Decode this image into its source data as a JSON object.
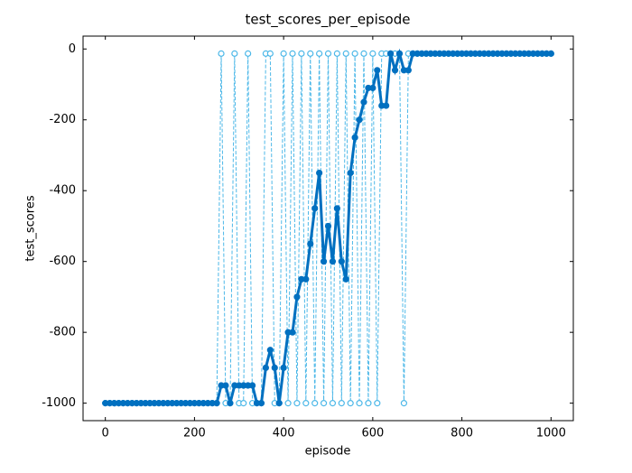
{
  "chart_data": {
    "type": "line",
    "title": "test_scores_per_episode",
    "x_label": "episode",
    "y_label": "test_scores",
    "x": [
      0,
      10,
      20,
      30,
      40,
      50,
      60,
      70,
      80,
      90,
      100,
      110,
      120,
      130,
      140,
      150,
      160,
      170,
      180,
      190,
      200,
      210,
      220,
      230,
      240,
      250,
      260,
      270,
      280,
      290,
      300,
      310,
      320,
      330,
      340,
      350,
      360,
      370,
      380,
      390,
      400,
      410,
      420,
      430,
      440,
      450,
      460,
      470,
      480,
      490,
      500,
      510,
      520,
      530,
      540,
      550,
      560,
      570,
      580,
      590,
      600,
      610,
      620,
      630,
      640,
      650,
      660,
      670,
      680,
      690,
      700,
      710,
      720,
      730,
      740,
      750,
      760,
      770,
      780,
      790,
      800,
      810,
      820,
      830,
      840,
      850,
      860,
      870,
      880,
      890,
      900,
      910,
      920,
      930,
      940,
      950,
      960,
      970,
      980,
      990,
      1000
    ],
    "series": [
      {
        "color": "#4db8e8",
        "linestyle": "dashed",
        "linewidth": 1,
        "marker_filled": false,
        "values": [
          -1000,
          -1000,
          -1000,
          -1000,
          -1000,
          -1000,
          -1000,
          -1000,
          -1000,
          -1000,
          -1000,
          -1000,
          -1000,
          -1000,
          -1000,
          -1000,
          -1000,
          -1000,
          -1000,
          -1000,
          -1000,
          -1000,
          -1000,
          -1000,
          -1000,
          -1000,
          -13,
          -1000,
          -1000,
          -13,
          -1000,
          -1000,
          -13,
          -1000,
          -1000,
          -1000,
          -13,
          -13,
          -1000,
          -1000,
          -13,
          -1000,
          -13,
          -1000,
          -13,
          -1000,
          -13,
          -1000,
          -13,
          -1000,
          -13,
          -1000,
          -13,
          -1000,
          -13,
          -1000,
          -13,
          -1000,
          -13,
          -1000,
          -13,
          -1000,
          -13,
          -13,
          -13,
          -13,
          -13,
          -1000,
          -13,
          -13,
          -13,
          -13,
          -13,
          -13,
          -13,
          -13,
          -13,
          -13,
          -13,
          -13,
          -13,
          -13,
          -13,
          -13,
          -13,
          -13,
          -13,
          -13,
          -13,
          -13,
          -13,
          -13,
          -13,
          -13,
          -13,
          -13,
          -13,
          -13,
          -13,
          -13,
          -13
        ]
      },
      {
        "color": "#0070c0",
        "linestyle": "solid",
        "linewidth": 3,
        "marker_filled": true,
        "values": [
          -1000,
          -1000,
          -1000,
          -1000,
          -1000,
          -1000,
          -1000,
          -1000,
          -1000,
          -1000,
          -1000,
          -1000,
          -1000,
          -1000,
          -1000,
          -1000,
          -1000,
          -1000,
          -1000,
          -1000,
          -1000,
          -1000,
          -1000,
          -1000,
          -1000,
          -1000,
          -950,
          -950,
          -1000,
          -950,
          -950,
          -950,
          -950,
          -950,
          -1000,
          -1000,
          -900,
          -850,
          -900,
          -1000,
          -900,
          -800,
          -800,
          -700,
          -650,
          -650,
          -550,
          -450,
          -350,
          -600,
          -500,
          -600,
          -450,
          -600,
          -650,
          -350,
          -250,
          -200,
          -150,
          -110,
          -110,
          -60,
          -160,
          -160,
          -13,
          -60,
          -13,
          -60,
          -60,
          -13,
          -13,
          -13,
          -13,
          -13,
          -13,
          -13,
          -13,
          -13,
          -13,
          -13,
          -13,
          -13,
          -13,
          -13,
          -13,
          -13,
          -13,
          -13,
          -13,
          -13,
          -13,
          -13,
          -13,
          -13,
          -13,
          -13,
          -13,
          -13,
          -13,
          -13,
          -13
        ]
      }
    ],
    "xlim": [
      -50,
      1050
    ],
    "ylim": [
      -1049.35,
      36.35
    ],
    "xticks": [
      0,
      200,
      400,
      600,
      800,
      1000
    ],
    "yticks": [
      -1000,
      -800,
      -600,
      -400,
      -200,
      0
    ]
  }
}
